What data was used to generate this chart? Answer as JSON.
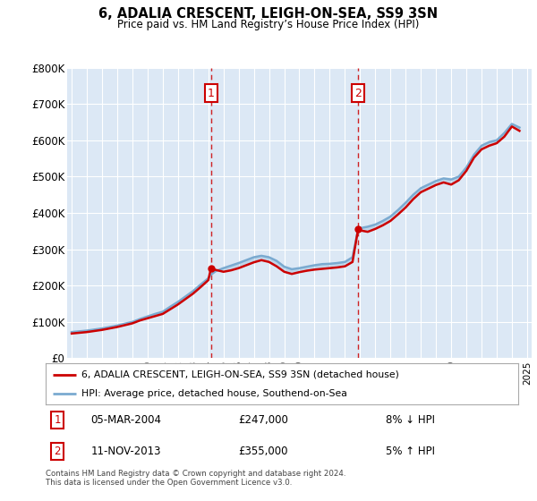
{
  "title": "6, ADALIA CRESCENT, LEIGH-ON-SEA, SS9 3SN",
  "subtitle": "Price paid vs. HM Land Registry’s House Price Index (HPI)",
  "ylim": [
    0,
    800000
  ],
  "yticks": [
    0,
    100000,
    200000,
    300000,
    400000,
    500000,
    600000,
    700000,
    800000
  ],
  "ytick_labels": [
    "£0",
    "£100K",
    "£200K",
    "£300K",
    "£400K",
    "£500K",
    "£600K",
    "£700K",
    "£800K"
  ],
  "plot_bg_color": "#dce8f5",
  "grid_color": "#ffffff",
  "transaction1": {
    "date_num": 2004.17,
    "price": 247000,
    "label": "1",
    "date_str": "05-MAR-2004",
    "pct": "8%",
    "dir": "↓"
  },
  "transaction2": {
    "date_num": 2013.87,
    "price": 355000,
    "label": "2",
    "date_str": "11-NOV-2013",
    "pct": "5%",
    "dir": "↑"
  },
  "legend_property": "6, ADALIA CRESCENT, LEIGH-ON-SEA, SS9 3SN (detached house)",
  "legend_hpi": "HPI: Average price, detached house, Southend-on-Sea",
  "footer": "Contains HM Land Registry data © Crown copyright and database right 2024.\nThis data is licensed under the Open Government Licence v3.0.",
  "property_line_color": "#cc0000",
  "hpi_line_color": "#7aaad0",
  "vline_color": "#cc0000",
  "hpi_years": [
    1995.0,
    1995.5,
    1996.0,
    1996.5,
    1997.0,
    1997.5,
    1998.0,
    1998.5,
    1999.0,
    1999.5,
    2000.0,
    2000.5,
    2001.0,
    2001.5,
    2002.0,
    2002.5,
    2003.0,
    2003.5,
    2004.0,
    2004.17,
    2004.5,
    2005.0,
    2005.5,
    2006.0,
    2006.5,
    2007.0,
    2007.5,
    2008.0,
    2008.5,
    2009.0,
    2009.5,
    2010.0,
    2010.5,
    2011.0,
    2011.5,
    2012.0,
    2012.5,
    2013.0,
    2013.5,
    2013.87,
    2014.0,
    2014.5,
    2015.0,
    2015.5,
    2016.0,
    2016.5,
    2017.0,
    2017.5,
    2018.0,
    2018.5,
    2019.0,
    2019.5,
    2020.0,
    2020.5,
    2021.0,
    2021.5,
    2022.0,
    2022.5,
    2023.0,
    2023.5,
    2024.0,
    2024.5
  ],
  "hpi_values": [
    72000,
    74000,
    76000,
    79000,
    82000,
    86000,
    90000,
    95000,
    100000,
    108000,
    115000,
    122000,
    128000,
    142000,
    155000,
    170000,
    185000,
    203000,
    220000,
    230000,
    240000,
    248000,
    255000,
    262000,
    270000,
    278000,
    282000,
    278000,
    268000,
    252000,
    245000,
    248000,
    252000,
    256000,
    259000,
    260000,
    262000,
    265000,
    278000,
    355000,
    358000,
    362000,
    368000,
    378000,
    390000,
    408000,
    428000,
    450000,
    468000,
    478000,
    488000,
    495000,
    492000,
    500000,
    525000,
    560000,
    585000,
    595000,
    600000,
    620000,
    645000,
    635000
  ],
  "prop_years": [
    1995.0,
    1995.5,
    1996.0,
    1996.5,
    1997.0,
    1997.5,
    1998.0,
    1998.5,
    1999.0,
    1999.5,
    2000.0,
    2000.5,
    2001.0,
    2001.5,
    2002.0,
    2002.5,
    2003.0,
    2003.5,
    2004.0,
    2004.17,
    2004.5,
    2005.0,
    2005.5,
    2006.0,
    2006.5,
    2007.0,
    2007.5,
    2008.0,
    2008.5,
    2009.0,
    2009.5,
    2010.0,
    2010.5,
    2011.0,
    2011.5,
    2012.0,
    2012.5,
    2013.0,
    2013.5,
    2013.87,
    2014.0,
    2014.5,
    2015.0,
    2015.5,
    2016.0,
    2016.5,
    2017.0,
    2017.5,
    2018.0,
    2018.5,
    2019.0,
    2019.5,
    2020.0,
    2020.5,
    2021.0,
    2021.5,
    2022.0,
    2022.5,
    2023.0,
    2023.5,
    2024.0,
    2024.5
  ],
  "prop_values": [
    68000,
    70000,
    72000,
    75000,
    78000,
    82000,
    86000,
    91000,
    96000,
    104000,
    110000,
    116000,
    122000,
    135000,
    148000,
    163000,
    178000,
    196000,
    215000,
    247000,
    243000,
    238000,
    242000,
    248000,
    256000,
    264000,
    270000,
    265000,
    253000,
    238000,
    232000,
    237000,
    241000,
    244000,
    246000,
    248000,
    250000,
    253000,
    265000,
    355000,
    352000,
    348000,
    356000,
    366000,
    378000,
    396000,
    415000,
    438000,
    457000,
    467000,
    477000,
    484000,
    478000,
    490000,
    516000,
    552000,
    575000,
    585000,
    592000,
    610000,
    638000,
    626000
  ]
}
